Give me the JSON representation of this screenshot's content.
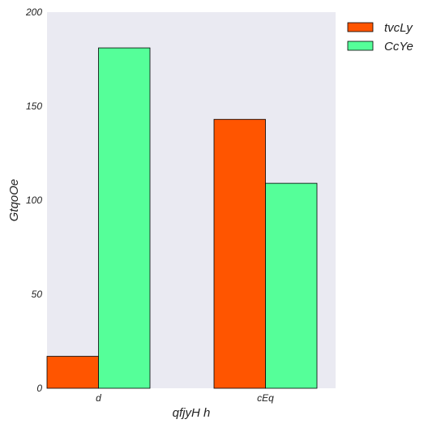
{
  "chart_data": {
    "type": "bar",
    "categories": [
      "d",
      "cEq"
    ],
    "series": [
      {
        "name": "tvcLy",
        "values": [
          17,
          143
        ],
        "color": "#ff5500"
      },
      {
        "name": "CcYe",
        "values": [
          181,
          109
        ],
        "color": "#55ff99"
      }
    ],
    "xlabel": "qfjyH h",
    "ylabel": "GtqoOe",
    "ylim": [
      0,
      200
    ],
    "yticks": [
      0,
      50,
      100,
      150,
      200
    ],
    "grid": false,
    "plot_background": "#eaeaf2",
    "bar_edge_color": "#000000",
    "legend_position": "top-right, outside plot"
  }
}
